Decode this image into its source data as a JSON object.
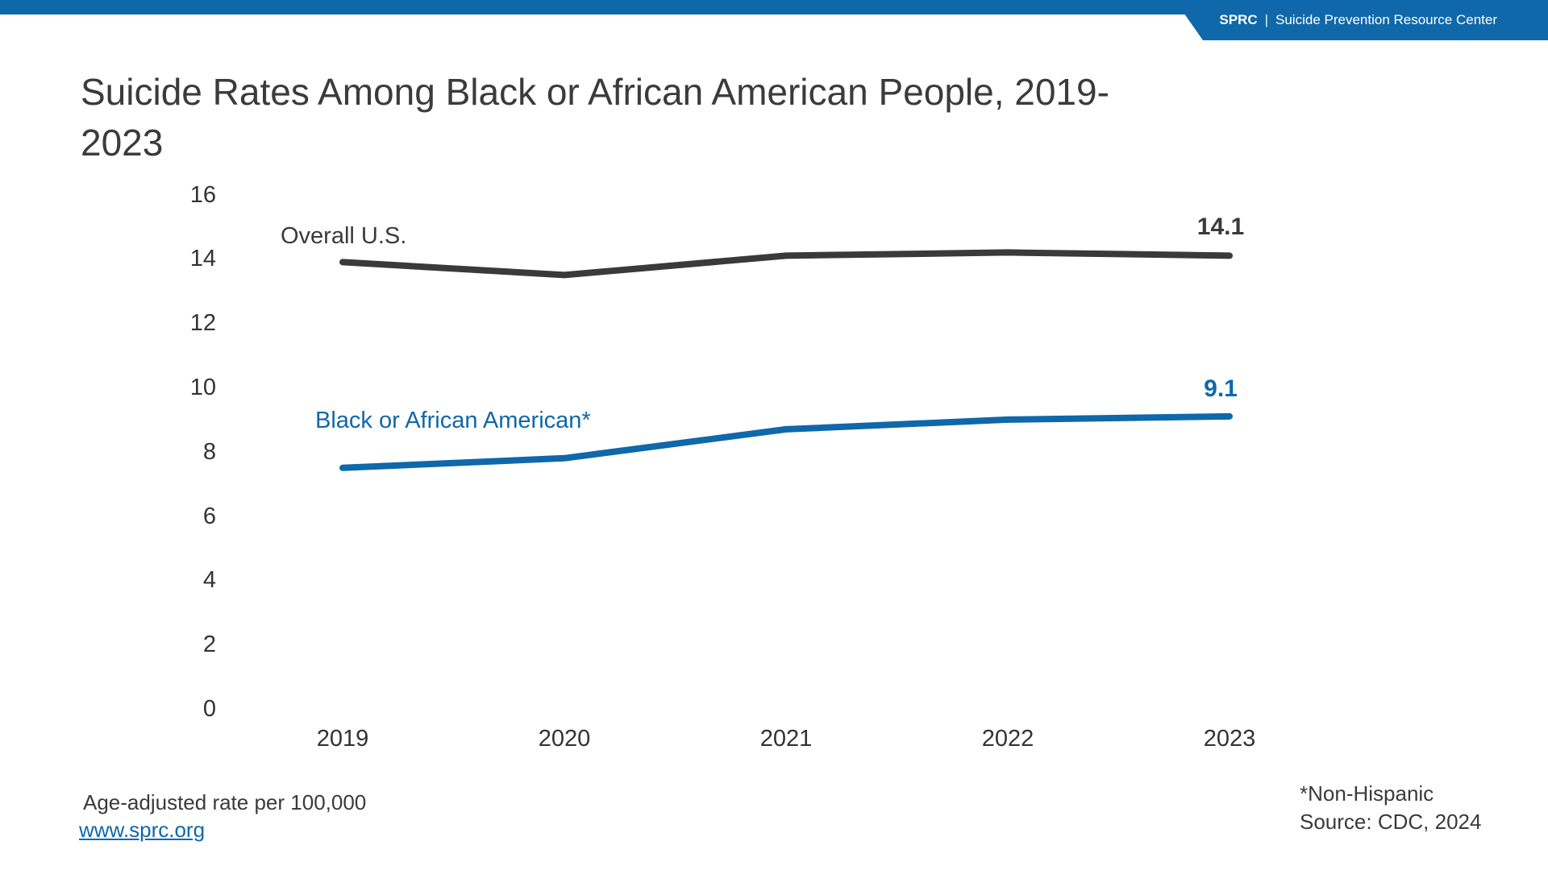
{
  "header": {
    "brand_short": "SPRC",
    "separator": "|",
    "brand_full": "Suicide Prevention Resource Center",
    "bar_color": "#0f68a9"
  },
  "title": {
    "full": "Suicide Rates Among Black or African American People, 2019-2023",
    "line1": "Suicide Rates Among Black or African American People, 2019-",
    "line2": "2023"
  },
  "chart_data": {
    "type": "line",
    "title": "Suicide Rates Among Black or African American People, 2019-2023",
    "x": [
      2019,
      2020,
      2021,
      2022,
      2023
    ],
    "series": [
      {
        "name": "Overall U.S.",
        "values": [
          13.9,
          13.5,
          14.1,
          14.2,
          14.1
        ],
        "color": "#3a3a3a",
        "end_label": "14.1"
      },
      {
        "name": "Black or African American*",
        "values": [
          7.5,
          7.8,
          8.7,
          9.0,
          9.1
        ],
        "color": "#0f68a9",
        "end_label": "9.1"
      }
    ],
    "ylim": [
      0,
      16
    ],
    "y_ticks": [
      16,
      14,
      12,
      10,
      8,
      6,
      4,
      2,
      0
    ],
    "xlabel": "",
    "ylabel": "Age-adjusted rate per 100,000",
    "grid": false,
    "legend": "inline-labels"
  },
  "footer": {
    "note_left": "Age-adjusted rate per 100,000",
    "link": "www.sprc.org",
    "note_right_1": "*Non-Hispanic",
    "note_right_2": "Source: CDC, 2024"
  }
}
